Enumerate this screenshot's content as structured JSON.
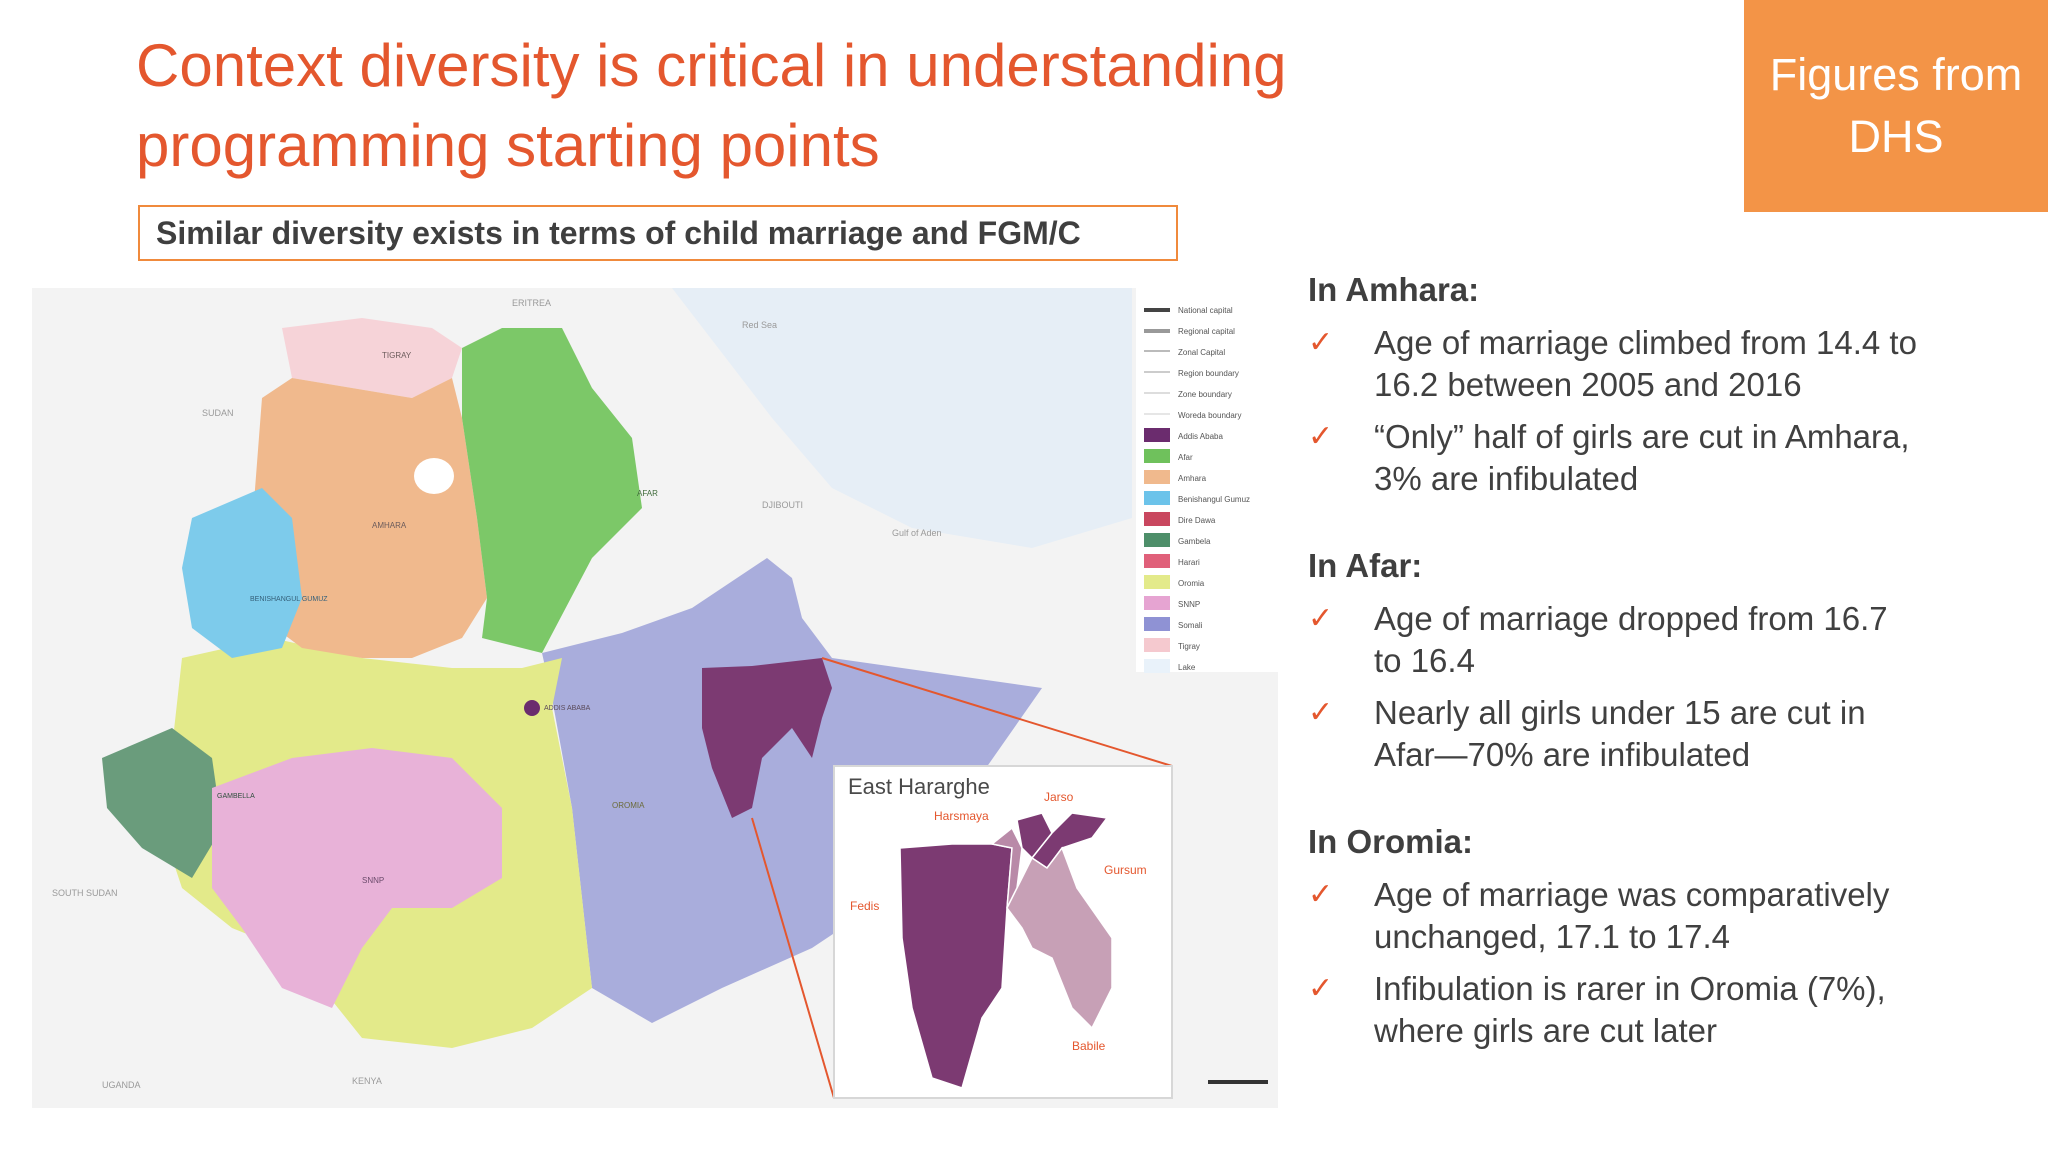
{
  "slide": {
    "title_line1": "Context diversity is critical in understanding",
    "title_line2": "programming starting points",
    "badge_line1": "Figures from",
    "badge_line2": "DHS",
    "subtitle": "Similar diversity exists in terms of child marriage and FGM/C"
  },
  "map": {
    "inset_title": "East Hararghe",
    "inset_labels": [
      "Jarso",
      "Harsmaya",
      "Gursum",
      "Fedis",
      "Babile"
    ],
    "legend": [
      {
        "label": "National capital",
        "color": "#444444"
      },
      {
        "label": "Regional capital",
        "color": "#999999"
      },
      {
        "label": "Zonal Capital",
        "color": "#bbbbbb"
      },
      {
        "label": "Region boundary",
        "color": "#cccccc"
      },
      {
        "label": "Zone boundary",
        "color": "#dddddd"
      },
      {
        "label": "Woreda boundary",
        "color": "#e6e6e6"
      },
      {
        "label": "Addis Ababa",
        "color": "#6b2c6e"
      },
      {
        "label": "Afar",
        "color": "#6fc15c"
      },
      {
        "label": "Amhara",
        "color": "#f0b98d"
      },
      {
        "label": "Benishangul Gumuz",
        "color": "#6cc3ea"
      },
      {
        "label": "Dire Dawa",
        "color": "#c9475f"
      },
      {
        "label": "Gambela",
        "color": "#4e8f6a"
      },
      {
        "label": "Harari",
        "color": "#e0607a"
      },
      {
        "label": "Oromia",
        "color": "#e3ea8a"
      },
      {
        "label": "SNNP",
        "color": "#e6a4d2"
      },
      {
        "label": "Somali",
        "color": "#8f92d4"
      },
      {
        "label": "Tigray",
        "color": "#f5c9cf"
      },
      {
        "label": "Lake",
        "color": "#e9f2fa"
      }
    ],
    "neighbors": [
      "ERITREA",
      "SUDAN",
      "SOUTH SUDAN",
      "KENYA",
      "UGANDA",
      "DJIBOUTI",
      "Gulf of Aden",
      "Red Sea"
    ],
    "regions": [
      "TIGRAY",
      "AMHARA",
      "AFAR",
      "BENISHANGUL GUMUZ",
      "ADDIS ABABA",
      "GAMBELLA",
      "OROMIA",
      "SNNP"
    ]
  },
  "amhara": {
    "heading": "In Amhara:",
    "b1_l1": "Age of marriage climbed from 14.4 to",
    "b1_l2": "16.2 between 2005 and 2016",
    "b2_l1": "“Only” half of girls are cut in Amhara,",
    "b2_l2": "3% are infibulated"
  },
  "afar": {
    "heading": "In Afar:",
    "b1_l1": "Age of marriage dropped from 16.7",
    "b1_l2": "to 16.4",
    "b2_l1": "Nearly all girls under 15 are cut in",
    "b2_l2": "Afar—70% are infibulated"
  },
  "oromia": {
    "heading": "In Oromia:",
    "b1_l1": "Age of marriage was comparatively",
    "b1_l2": "unchanged, 17.1 to 17.4",
    "b2_l1": "Infibulation is rarer in Oromia (7%),",
    "b2_l2": "where girls are cut later"
  },
  "check_glyph": "✓",
  "colors": {
    "accent": "#e4572e",
    "badge": "#f39447",
    "text": "#404040"
  }
}
